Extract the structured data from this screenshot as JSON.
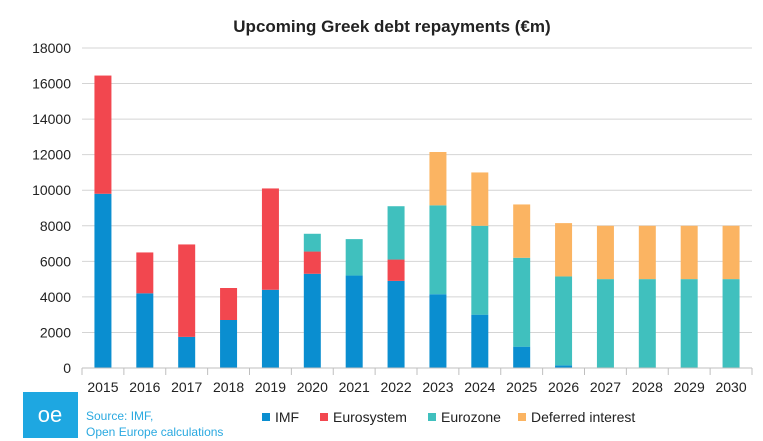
{
  "logo": {
    "text": "oe",
    "color": "#1ea7e1"
  },
  "source": {
    "line1": "Source: IMF,",
    "line2": "Open Europe calculations"
  },
  "chart_data": {
    "type": "bar",
    "stacked": true,
    "title": "Upcoming Greek debt repayments (€m)",
    "xlabel": "",
    "ylabel": "",
    "ylim": [
      0,
      18000
    ],
    "yticks": [
      0,
      2000,
      4000,
      6000,
      8000,
      10000,
      12000,
      14000,
      16000,
      18000
    ],
    "grid": true,
    "legend_position": "bottom",
    "categories": [
      "2015",
      "2016",
      "2017",
      "2018",
      "2019",
      "2020",
      "2021",
      "2022",
      "2023",
      "2024",
      "2025",
      "2026",
      "2027",
      "2028",
      "2029",
      "2030"
    ],
    "series": [
      {
        "name": "IMF",
        "color": "#0a8ed0",
        "values": [
          9800,
          4200,
          1750,
          2700,
          4400,
          5300,
          5200,
          4900,
          4150,
          3000,
          1200,
          150,
          0,
          0,
          0,
          0
        ]
      },
      {
        "name": "Eurosystem",
        "color": "#f2474f",
        "values": [
          6650,
          2300,
          5200,
          1800,
          5700,
          1250,
          0,
          1200,
          0,
          0,
          0,
          0,
          0,
          0,
          0,
          0
        ]
      },
      {
        "name": "Eurozone",
        "color": "#40c0be",
        "values": [
          0,
          0,
          0,
          0,
          0,
          1000,
          2050,
          3000,
          5000,
          5000,
          5000,
          5000,
          5000,
          5000,
          5000,
          5000
        ]
      },
      {
        "name": "Deferred interest",
        "color": "#fbb462",
        "values": [
          0,
          0,
          0,
          0,
          0,
          0,
          0,
          0,
          3000,
          3000,
          3000,
          3000,
          3000,
          3000,
          3000,
          3000
        ]
      }
    ]
  }
}
